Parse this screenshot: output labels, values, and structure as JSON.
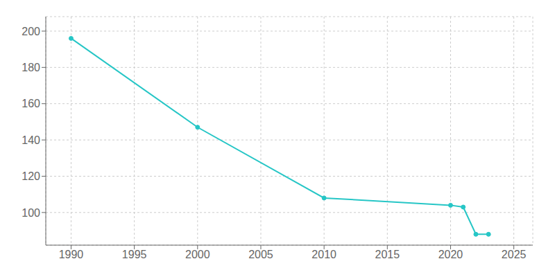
{
  "chart_data": {
    "type": "line",
    "x": [
      1990,
      2000,
      2010,
      2020,
      2021,
      2022,
      2023
    ],
    "values": [
      196,
      147,
      108,
      104,
      103,
      88,
      88
    ],
    "color": "#26c6c6",
    "marker": "circle",
    "xlim": [
      1988,
      2026.5
    ],
    "ylim": [
      82,
      208
    ],
    "xticks": [
      1990,
      1995,
      2000,
      2005,
      2010,
      2015,
      2020,
      2025
    ],
    "yticks": [
      100,
      120,
      140,
      160,
      180,
      200
    ],
    "grid": true
  }
}
